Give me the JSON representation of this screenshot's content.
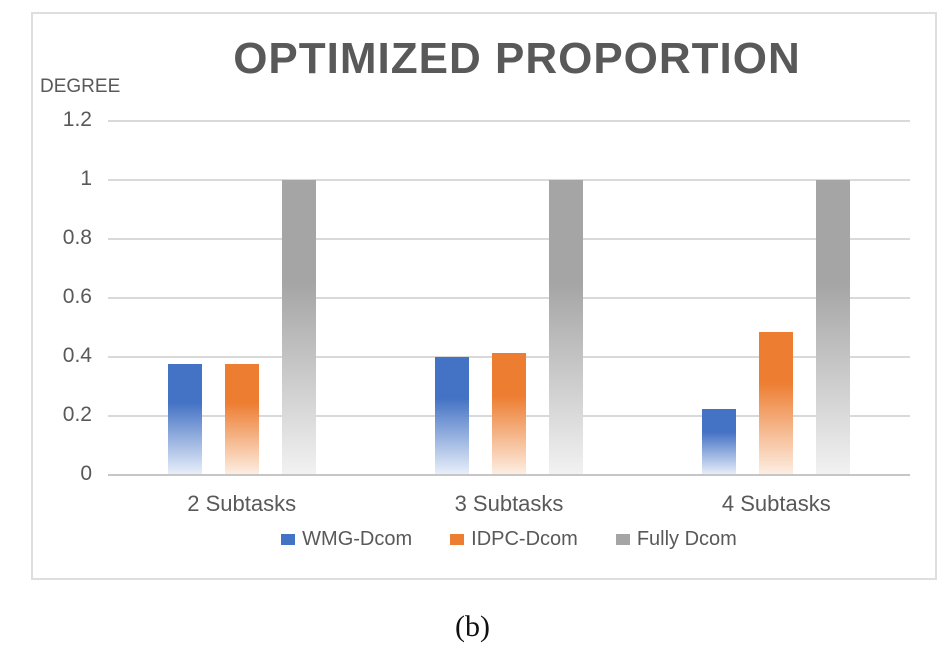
{
  "figure": {
    "caption": "(b)"
  },
  "chart_data": {
    "type": "bar",
    "title": "OPTIMIZED PROPORTION",
    "ylabel": "DEGREE",
    "xlabel": "",
    "categories": [
      "2 Subtasks",
      "3 Subtasks",
      "4 Subtasks"
    ],
    "series": [
      {
        "name": "WMG-Dcom",
        "values": [
          0.375,
          0.4,
          0.225
        ],
        "color": "#4472c4",
        "fade": "#eaf0fa"
      },
      {
        "name": "IDPC-Dcom",
        "values": [
          0.375,
          0.415,
          0.485
        ],
        "color": "#ed7d31",
        "fade": "#fdefe4"
      },
      {
        "name": "Fully Dcom",
        "values": [
          1.0,
          1.0,
          1.0
        ],
        "color": "#a5a5a5",
        "fade": "#f2f2f2"
      }
    ],
    "ylim": [
      0,
      1.2
    ],
    "yticks": [
      {
        "v": 1.2,
        "label": "1.2"
      },
      {
        "v": 1.0,
        "label": "1"
      },
      {
        "v": 0.8,
        "label": "0.8"
      },
      {
        "v": 0.6,
        "label": "0.6"
      },
      {
        "v": 0.4,
        "label": "0.4"
      },
      {
        "v": 0.2,
        "label": "0.2"
      },
      {
        "v": 0.0,
        "label": "0"
      }
    ],
    "grid": true,
    "legend_position": "bottom",
    "text_color": "#595959",
    "gridline_color": "#d9d9d9",
    "frame_color": "#dedede"
  }
}
